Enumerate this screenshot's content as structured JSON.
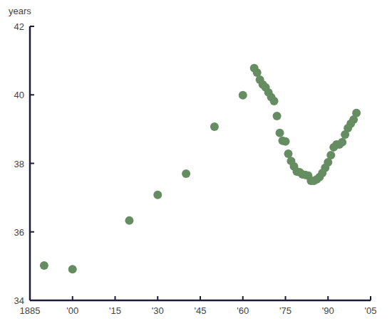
{
  "chart_data": {
    "type": "scatter",
    "y_label": "years",
    "color": "#668d61",
    "marker": "circle",
    "xlim": [
      1885,
      2005
    ],
    "ylim": [
      34,
      42
    ],
    "xticks": [
      1885,
      {
        "value": 1900,
        "label": "'00"
      },
      {
        "value": 1915,
        "label": "'15"
      },
      {
        "value": 1930,
        "label": "'30"
      },
      {
        "value": 1945,
        "label": "'45"
      },
      {
        "value": 1960,
        "label": "'60"
      },
      {
        "value": 1975,
        "label": "'75"
      },
      {
        "value": 1990,
        "label": "'90"
      },
      {
        "value": 2005,
        "label": "'05"
      }
    ],
    "yticks": [
      34,
      36,
      38,
      40,
      42
    ],
    "grid": false,
    "x": [
      1890,
      1900,
      1920,
      1930,
      1940,
      1950,
      1960,
      1964,
      1965,
      1966,
      1967,
      1968,
      1969,
      1970,
      1971,
      1972,
      1973,
      1974,
      1975,
      1976,
      1977,
      1978,
      1979,
      1980,
      1981,
      1982,
      1983,
      1984,
      1985,
      1986,
      1987,
      1988,
      1989,
      1990,
      1991,
      1992,
      1993,
      1994,
      1995,
      1996,
      1997,
      1998,
      1999,
      2000
    ],
    "values": [
      35.02,
      34.91,
      36.33,
      37.08,
      37.7,
      39.07,
      39.99,
      40.78,
      40.65,
      40.44,
      40.3,
      40.22,
      40.07,
      39.93,
      39.82,
      39.38,
      38.89,
      38.66,
      38.64,
      38.28,
      38.07,
      37.91,
      37.76,
      37.74,
      37.68,
      37.66,
      37.64,
      37.49,
      37.49,
      37.53,
      37.6,
      37.72,
      37.87,
      38.03,
      38.24,
      38.47,
      38.55,
      38.55,
      38.62,
      38.84,
      39.03,
      39.16,
      39.28,
      39.47
    ]
  }
}
